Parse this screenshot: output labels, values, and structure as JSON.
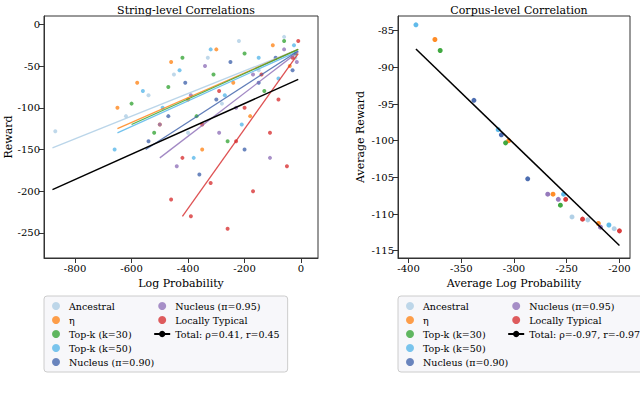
{
  "chart_data": [
    {
      "type": "scatter",
      "title": "String-level Correlations",
      "x_label": "Log Probability",
      "y_label": "Reward",
      "xlim": [
        -910,
        60
      ],
      "ylim": [
        -280,
        10
      ],
      "xticks": [
        -800,
        -600,
        -400,
        -200,
        0
      ],
      "yticks": [
        -250,
        -200,
        -150,
        -100,
        -50,
        0
      ],
      "grid": false,
      "legend": "bottom",
      "series": [
        {
          "name": "Ancestral",
          "color": "#a9cbe3",
          "marker": "circle",
          "values": [
            [
              -870,
              -128
            ],
            [
              -620,
              -110
            ],
            [
              -540,
              -85
            ],
            [
              -450,
              -60
            ],
            [
              -400,
              -130
            ],
            [
              -330,
              -40
            ],
            [
              -280,
              -95
            ],
            [
              -220,
              -20
            ],
            [
              -150,
              -55
            ],
            [
              -60,
              -15
            ],
            [
              -20,
              -40
            ]
          ],
          "trend": [
            [
              -880,
              -148
            ],
            [
              -10,
              -30
            ]
          ]
        },
        {
          "name": "η",
          "color": "#ff7f0e",
          "marker": "circle",
          "values": [
            [
              -650,
              -100
            ],
            [
              -580,
              -70
            ],
            [
              -500,
              -120
            ],
            [
              -460,
              -45
            ],
            [
              -400,
              -90
            ],
            [
              -350,
              -150
            ],
            [
              -300,
              -30
            ],
            [
              -240,
              -70
            ],
            [
              -180,
              -110
            ],
            [
              -100,
              -25
            ],
            [
              -40,
              -50
            ]
          ],
          "trend": [
            [
              -650,
              -125
            ],
            [
              -10,
              -30
            ]
          ]
        },
        {
          "name": "Top-k (k=30)",
          "color": "#2ca02c",
          "marker": "circle",
          "values": [
            [
              -600,
              -95
            ],
            [
              -520,
              -130
            ],
            [
              -470,
              -75
            ],
            [
              -420,
              -40
            ],
            [
              -370,
              -110
            ],
            [
              -310,
              -60
            ],
            [
              -260,
              -140
            ],
            [
              -200,
              -35
            ],
            [
              -130,
              -80
            ],
            [
              -60,
              -20
            ],
            [
              -20,
              -35
            ]
          ],
          "trend": [
            [
              -600,
              -120
            ],
            [
              -10,
              -30
            ]
          ]
        },
        {
          "name": "Top-k (k=50)",
          "color": "#4fb3e8",
          "marker": "circle",
          "values": [
            [
              -660,
              -150
            ],
            [
              -560,
              -80
            ],
            [
              -490,
              -100
            ],
            [
              -430,
              -55
            ],
            [
              -380,
              -160
            ],
            [
              -320,
              -30
            ],
            [
              -270,
              -85
            ],
            [
              -210,
              -120
            ],
            [
              -150,
              -40
            ],
            [
              -80,
              -65
            ],
            [
              -25,
              -25
            ]
          ],
          "trend": [
            [
              -650,
              -130
            ],
            [
              -10,
              -32
            ]
          ]
        },
        {
          "name": "Nucleus (π=0.90)",
          "color": "#3a5ea8",
          "marker": "circle",
          "values": [
            [
              -540,
              -140
            ],
            [
              -470,
              -110
            ],
            [
              -410,
              -70
            ],
            [
              -360,
              -180
            ],
            [
              -300,
              -90
            ],
            [
              -250,
              -45
            ],
            [
              -200,
              -150
            ],
            [
              -150,
              -70
            ],
            [
              -90,
              -40
            ],
            [
              -30,
              -55
            ]
          ],
          "trend": [
            [
              -550,
              -150
            ],
            [
              -10,
              -32
            ]
          ]
        },
        {
          "name": "Nucleus (π=0.95)",
          "color": "#8b6bb5",
          "marker": "circle",
          "values": [
            [
              -500,
              -120
            ],
            [
              -440,
              -170
            ],
            [
              -390,
              -85
            ],
            [
              -340,
              -50
            ],
            [
              -290,
              -130
            ],
            [
              -230,
              -100
            ],
            [
              -170,
              -60
            ],
            [
              -110,
              -160
            ],
            [
              -60,
              -30
            ],
            [
              -15,
              -45
            ]
          ],
          "trend": [
            [
              -500,
              -160
            ],
            [
              -10,
              -33
            ]
          ]
        },
        {
          "name": "Locally Typical",
          "color": "#d62728",
          "marker": "circle",
          "values": [
            [
              -460,
              -210
            ],
            [
              -420,
              -160
            ],
            [
              -390,
              -230
            ],
            [
              -350,
              -120
            ],
            [
              -320,
              -190
            ],
            [
              -290,
              -80
            ],
            [
              -260,
              -245
            ],
            [
              -230,
              -140
            ],
            [
              -200,
              -100
            ],
            [
              -170,
              -200
            ],
            [
              -140,
              -60
            ],
            [
              -110,
              -130
            ],
            [
              -80,
              -90
            ],
            [
              -50,
              -170
            ],
            [
              -30,
              -40
            ],
            [
              -10,
              -20
            ]
          ],
          "trend": [
            [
              -420,
              -230
            ],
            [
              -10,
              -35
            ]
          ]
        },
        {
          "name": "Total: ρ=0.41, r=0.45",
          "color": "#000000",
          "type": "line",
          "line_style": "solid",
          "values": [
            [
              -880,
              -198
            ],
            [
              -10,
              -66
            ]
          ]
        }
      ]
    },
    {
      "type": "scatter",
      "title": "Corpus-level Correlation",
      "x_label": "Average Log Probability",
      "y_label": "Average Reward",
      "xlim": [
        -410,
        -190
      ],
      "ylim": [
        -116,
        -83
      ],
      "xticks": [
        -400,
        -350,
        -300,
        -250,
        -200
      ],
      "yticks": [
        -115,
        -110,
        -105,
        -100,
        -95,
        -90,
        -85
      ],
      "grid": false,
      "legend": "bottom",
      "series": [
        {
          "name": "Ancestral",
          "color": "#a9cbe3",
          "marker": "circle",
          "values": [
            [
              -245,
              -110.4
            ],
            [
              -230,
              -110.8
            ],
            [
              -205,
              -112
            ]
          ]
        },
        {
          "name": "η",
          "color": "#ff7f0e",
          "marker": "circle",
          "values": [
            [
              -375,
              -86.2
            ],
            [
              -305,
              -100
            ],
            [
              -263,
              -107.3
            ],
            [
              -220,
              -111.3
            ]
          ]
        },
        {
          "name": "Top-k (k=30)",
          "color": "#2ca02c",
          "marker": "circle",
          "values": [
            [
              -370,
              -87.7
            ],
            [
              -308,
              -100.3
            ],
            [
              -256,
              -108.8
            ]
          ]
        },
        {
          "name": "Top-k (k=50)",
          "color": "#4fb3e8",
          "marker": "circle",
          "values": [
            [
              -393,
              -84.2
            ],
            [
              -315,
              -98.5
            ],
            [
              -253,
              -107.3
            ],
            [
              -210,
              -111.5
            ]
          ]
        },
        {
          "name": "Nucleus (π=0.90)",
          "color": "#3a5ea8",
          "marker": "circle",
          "values": [
            [
              -338,
              -94.5
            ],
            [
              -312,
              -99.2
            ],
            [
              -287,
              -105.2
            ]
          ]
        },
        {
          "name": "Nucleus (π=0.95)",
          "color": "#8b6bb5",
          "marker": "circle",
          "values": [
            [
              -268,
              -107.3
            ],
            [
              -258,
              -108
            ],
            [
              -218,
              -111.8
            ]
          ]
        },
        {
          "name": "Locally Typical",
          "color": "#d62728",
          "marker": "circle",
          "values": [
            [
              -251,
              -108
            ],
            [
              -235,
              -110.7
            ],
            [
              -200,
              -112.3
            ]
          ]
        },
        {
          "name": "Total: ρ=-0.97, r=-0.97",
          "color": "#000000",
          "type": "line",
          "line_style": "solid",
          "values": [
            [
              -393,
              -87.5
            ],
            [
              -200,
              -114.3
            ]
          ]
        }
      ]
    }
  ]
}
